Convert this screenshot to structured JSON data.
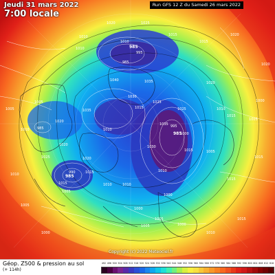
{
  "header": {
    "date": "Jeudi 31 mars 2022",
    "time": "7:00 locale",
    "run": "Run GFS 12 Z du Samedi 26 mars 2022"
  },
  "footer": {
    "title": "Géop. Z500 & pression au sol",
    "subtitle": "(+ 114h)",
    "copyright": "Copyright (c) 2022 Meteociel.fr"
  },
  "scale": {
    "ticks": [
      "492",
      "496",
      "500",
      "504",
      "508",
      "512",
      "516",
      "520",
      "524",
      "528",
      "532",
      "536",
      "540",
      "544",
      "548",
      "552",
      "556",
      "560",
      "564",
      "568",
      "572",
      "576",
      "580",
      "584",
      "588",
      "592",
      "596",
      "600",
      "604",
      "608",
      "612",
      "616"
    ],
    "colors": [
      "#2a0020",
      "#4a0040",
      "#6a1070",
      "#7a2590",
      "#5a2aa8",
      "#3a3ac0",
      "#2a50d8",
      "#1a68e8",
      "#1a88f0",
      "#10a8f0",
      "#10c8e8",
      "#20e0d8",
      "#40f0b0",
      "#70f080",
      "#a8f050",
      "#d8f040",
      "#f8f040",
      "#f8e040",
      "#f8c838",
      "#f8b030",
      "#f89828",
      "#f88020",
      "#f86820",
      "#f05020",
      "#e83818",
      "#e02018",
      "#d01818",
      "#b81010",
      "#a00808",
      "#880000",
      "#700000",
      "#580000"
    ]
  },
  "labels": {
    "pressure": [
      "1020",
      "1025",
      "1010",
      "1015",
      "1015",
      "1010",
      "995",
      "985",
      "1010",
      "1030",
      "1040",
      "1035",
      "1035",
      "1005",
      "1005",
      "1010",
      "1020",
      "1010",
      "1015",
      "1025",
      "1035",
      "1030",
      "1025",
      "1020",
      "1015",
      "1005",
      "1000",
      "995",
      "1015",
      "1020",
      "1025",
      "1020",
      "1015",
      "1005",
      "1010",
      "1015",
      "1010",
      "1000",
      "1000",
      "1010",
      "1005",
      "1015",
      "1000",
      "1005",
      "1015",
      "1010",
      "1000",
      "1005",
      "1010",
      "1015",
      "1020",
      "1020",
      "1010",
      "1000",
      "1005",
      "985",
      "990"
    ],
    "lows": [
      "985",
      "985",
      "985"
    ]
  },
  "legend": {
    "z500_min": "492",
    "z500_max": "616"
  }
}
